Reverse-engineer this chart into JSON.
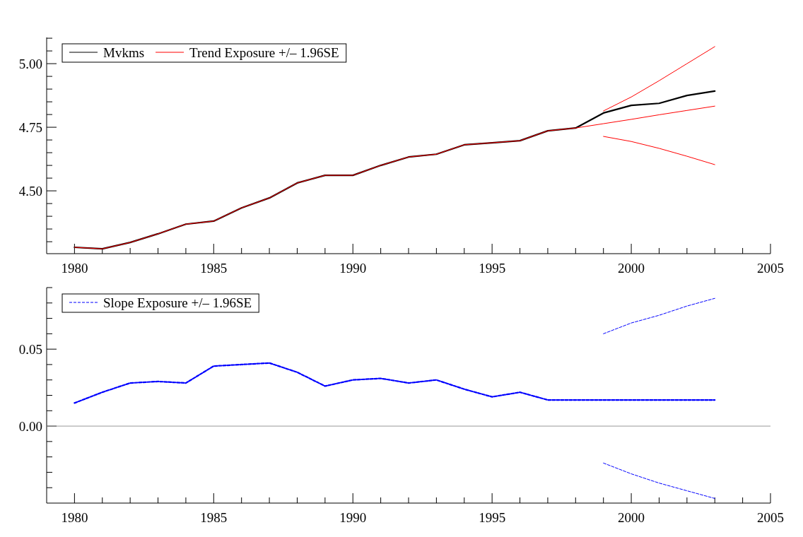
{
  "chart_data": [
    {
      "type": "line",
      "x": [
        1980,
        1981,
        1982,
        1983,
        1984,
        1985,
        1986,
        1987,
        1988,
        1989,
        1990,
        1991,
        1992,
        1993,
        1994,
        1995,
        1996,
        1997,
        1998,
        1999,
        2000,
        2001,
        2002,
        2003
      ],
      "series": [
        {
          "name": "Mvkms",
          "color": "#000000",
          "values": [
            4.278,
            4.272,
            4.297,
            4.331,
            4.369,
            4.381,
            4.433,
            4.472,
            4.531,
            4.561,
            4.561,
            4.6,
            4.633,
            4.644,
            4.681,
            4.689,
            4.697,
            4.736,
            4.747,
            4.806,
            4.836,
            4.844,
            4.875,
            4.892
          ]
        },
        {
          "name": "Trend Exposure +/– 1.96SE",
          "color": "#ff0000",
          "values": [
            4.278,
            4.272,
            4.297,
            4.331,
            4.369,
            4.381,
            4.433,
            4.472,
            4.531,
            4.561,
            4.561,
            4.6,
            4.633,
            4.644,
            4.681,
            4.689,
            4.697,
            4.736,
            4.747,
            4.764,
            4.781,
            4.799,
            4.816,
            4.833
          ]
        },
        {
          "color": "#ff0000",
          "x": [
            1999,
            2000,
            2001,
            2002,
            2003
          ],
          "values": [
            4.814,
            4.869,
            4.933,
            5.0,
            5.067
          ]
        },
        {
          "color": "#ff0000",
          "x": [
            1999,
            2000,
            2001,
            2002,
            2003
          ],
          "values": [
            4.714,
            4.694,
            4.667,
            4.636,
            4.603
          ]
        }
      ],
      "xlim": [
        1979,
        2005
      ],
      "xticks": [
        1980,
        {
          "value": 1981,
          "label": null
        },
        {
          "value": 1982,
          "label": null
        },
        {
          "value": 1983,
          "label": null
        },
        {
          "value": 1984,
          "label": null
        },
        1985,
        {
          "value": 1986,
          "label": null
        },
        {
          "value": 1987,
          "label": null
        },
        {
          "value": 1988,
          "label": null
        },
        {
          "value": 1989,
          "label": null
        },
        1990,
        {
          "value": 1991,
          "label": null
        },
        {
          "value": 1992,
          "label": null
        },
        {
          "value": 1993,
          "label": null
        },
        {
          "value": 1994,
          "label": null
        },
        1995,
        {
          "value": 1996,
          "label": null
        },
        {
          "value": 1997,
          "label": null
        },
        {
          "value": 1998,
          "label": null
        },
        {
          "value": 1999,
          "label": null
        },
        2000,
        {
          "value": 2001,
          "label": null
        },
        {
          "value": 2002,
          "label": null
        },
        {
          "value": 2003,
          "label": null
        },
        {
          "value": 2004,
          "label": null
        },
        2005
      ],
      "ylim": [
        4.253,
        5.103
      ],
      "yticks": [
        {
          "value": 4.3,
          "label": null
        },
        {
          "value": 4.35,
          "label": null
        },
        {
          "value": 4.4,
          "label": null
        },
        {
          "value": 4.45,
          "label": null
        },
        {
          "value": 4.5,
          "label": "4.50"
        },
        {
          "value": 4.55,
          "label": null
        },
        {
          "value": 4.6,
          "label": null
        },
        {
          "value": 4.65,
          "label": null
        },
        {
          "value": 4.7,
          "label": null
        },
        {
          "value": 4.75,
          "label": "4.75"
        },
        {
          "value": 4.8,
          "label": null
        },
        {
          "value": 4.85,
          "label": null
        },
        {
          "value": 4.9,
          "label": null
        },
        {
          "value": 4.95,
          "label": null
        },
        {
          "value": 5.0,
          "label": "5.00"
        },
        {
          "value": 5.05,
          "label": null
        },
        {
          "value": 5.1,
          "label": null
        }
      ],
      "grid": false,
      "legend": "top left",
      "line_style": "solid"
    },
    {
      "type": "line",
      "x": [
        1980,
        1981,
        1982,
        1983,
        1984,
        1985,
        1986,
        1987,
        1988,
        1989,
        1990,
        1991,
        1992,
        1993,
        1994,
        1995,
        1996,
        1997,
        1998,
        1999,
        2000,
        2001,
        2002,
        2003
      ],
      "series": [
        {
          "name": "Slope Exposure +/– 1.96SE",
          "color": "#0000ff",
          "values": [
            0.015,
            0.022,
            0.028,
            0.029,
            0.028,
            0.039,
            0.04,
            0.041,
            0.035,
            0.026,
            0.03,
            0.031,
            0.028,
            0.03,
            0.024,
            0.019,
            0.022,
            0.017,
            0.017,
            0.017,
            0.017,
            0.017,
            0.017,
            0.017
          ]
        },
        {
          "color": "#0000ff",
          "x": [
            1999,
            2000,
            2001,
            2002,
            2003
          ],
          "values": [
            0.06,
            0.067,
            0.072,
            0.078,
            0.083
          ]
        },
        {
          "color": "#0000ff",
          "x": [
            1999,
            2000,
            2001,
            2002,
            2003
          ],
          "values": [
            -0.024,
            -0.031,
            -0.037,
            -0.042,
            -0.047
          ]
        }
      ],
      "xlim": [
        1979,
        2005
      ],
      "xticks": [
        1980,
        {
          "value": 1981,
          "label": null
        },
        {
          "value": 1982,
          "label": null
        },
        {
          "value": 1983,
          "label": null
        },
        {
          "value": 1984,
          "label": null
        },
        1985,
        {
          "value": 1986,
          "label": null
        },
        {
          "value": 1987,
          "label": null
        },
        {
          "value": 1988,
          "label": null
        },
        {
          "value": 1989,
          "label": null
        },
        1990,
        {
          "value": 1991,
          "label": null
        },
        {
          "value": 1992,
          "label": null
        },
        {
          "value": 1993,
          "label": null
        },
        {
          "value": 1994,
          "label": null
        },
        1995,
        {
          "value": 1996,
          "label": null
        },
        {
          "value": 1997,
          "label": null
        },
        {
          "value": 1998,
          "label": null
        },
        {
          "value": 1999,
          "label": null
        },
        2000,
        {
          "value": 2001,
          "label": null
        },
        {
          "value": 2002,
          "label": null
        },
        {
          "value": 2003,
          "label": null
        },
        {
          "value": 2004,
          "label": null
        },
        2005
      ],
      "ylim": [
        -0.05,
        0.09
      ],
      "yticks": [
        {
          "value": -0.04,
          "label": null
        },
        {
          "value": -0.03,
          "label": null
        },
        {
          "value": -0.02,
          "label": null
        },
        {
          "value": -0.01,
          "label": null
        },
        {
          "value": 0,
          "label": "0.00"
        },
        {
          "value": 0.01,
          "label": null
        },
        {
          "value": 0.02,
          "label": null
        },
        {
          "value": 0.03,
          "label": null
        },
        {
          "value": 0.04,
          "label": null
        },
        {
          "value": 0.05,
          "label": "0.05"
        },
        {
          "value": 0.06,
          "label": null
        },
        {
          "value": 0.07,
          "label": null
        },
        {
          "value": 0.08,
          "label": null
        },
        {
          "value": 0.09,
          "label": null
        }
      ],
      "ref_lines": [
        {
          "axis": "y",
          "value": 0,
          "color": "#999999"
        }
      ],
      "grid": false,
      "legend": "top left",
      "line_style": "dashed"
    }
  ]
}
